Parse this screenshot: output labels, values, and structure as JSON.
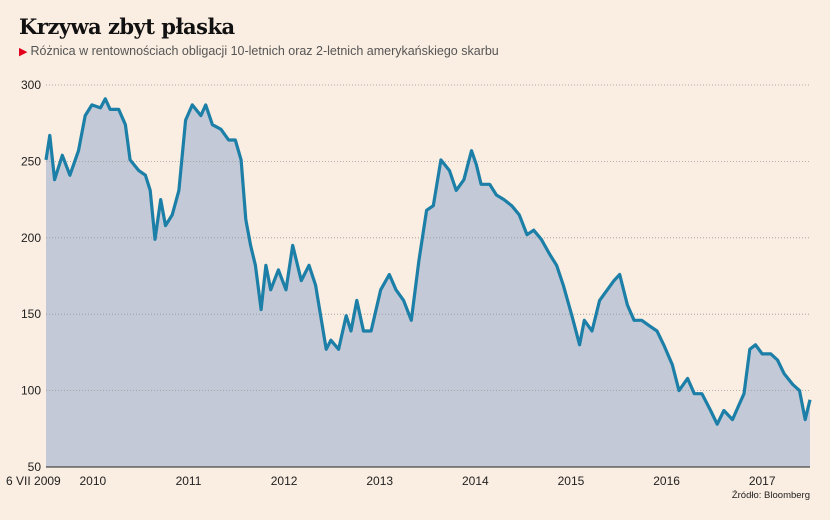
{
  "title": "Krzywa zbyt płaska",
  "subtitle": "Różnica w rentownościach obligacji 10-letnich oraz 2-letnich amerykańskiego skarbu",
  "source": "Źródło: Bloomberg",
  "colors": {
    "background": "#faede1",
    "fill": "#c3c9d6",
    "line": "#1c7fa7",
    "accent": "#e2001a"
  },
  "chart_data": {
    "type": "area",
    "title": "Krzywa zbyt płaska",
    "xlabel": "",
    "ylabel": "",
    "ylim": [
      50,
      300
    ],
    "xlim": [
      2009.51,
      2017.5
    ],
    "yticks": [
      50,
      100,
      150,
      200,
      250,
      300
    ],
    "xticks": [
      {
        "value": 2009.51,
        "label": "6 VII 2009"
      },
      {
        "value": 2010,
        "label": "2010"
      },
      {
        "value": 2011,
        "label": "2011"
      },
      {
        "value": 2012,
        "label": "2012"
      },
      {
        "value": 2013,
        "label": "2013"
      },
      {
        "value": 2014,
        "label": "2014"
      },
      {
        "value": 2015,
        "label": "2015"
      },
      {
        "value": 2016,
        "label": "2016"
      },
      {
        "value": 2017,
        "label": "2017"
      }
    ],
    "grid": true,
    "x": [
      2009.51,
      2009.55,
      2009.6,
      2009.68,
      2009.76,
      2009.85,
      2009.92,
      2009.99,
      2010.08,
      2010.13,
      2010.18,
      2010.27,
      2010.34,
      2010.39,
      2010.48,
      2010.55,
      2010.6,
      2010.65,
      2010.71,
      2010.76,
      2010.83,
      2010.9,
      2010.97,
      2011.04,
      2011.13,
      2011.18,
      2011.25,
      2011.34,
      2011.42,
      2011.49,
      2011.55,
      2011.6,
      2011.65,
      2011.7,
      2011.76,
      2011.81,
      2011.86,
      2011.94,
      2012.02,
      2012.09,
      2012.18,
      2012.26,
      2012.33,
      2012.39,
      2012.44,
      2012.49,
      2012.57,
      2012.65,
      2012.7,
      2012.76,
      2012.83,
      2012.91,
      2013.01,
      2013.1,
      2013.17,
      2013.25,
      2013.33,
      2013.41,
      2013.49,
      2013.56,
      2013.64,
      2013.73,
      2013.8,
      2013.88,
      2013.96,
      2014.01,
      2014.06,
      2014.15,
      2014.22,
      2014.3,
      2014.38,
      2014.46,
      2014.54,
      2014.61,
      2014.69,
      2014.78,
      2014.85,
      2014.92,
      2015.01,
      2015.09,
      2015.14,
      2015.22,
      2015.3,
      2015.38,
      2015.45,
      2015.51,
      2015.59,
      2015.66,
      2015.74,
      2015.83,
      2015.9,
      2015.97,
      2016.06,
      2016.13,
      2016.22,
      2016.29,
      2016.37,
      2016.46,
      2016.53,
      2016.6,
      2016.69,
      2016.76,
      2016.81,
      2016.87,
      2016.93,
      2017.0,
      2017.09,
      2017.16,
      2017.23,
      2017.32,
      2017.39,
      2017.45,
      2017.5
    ],
    "values": [
      251,
      267,
      238,
      254,
      241,
      257,
      280,
      287,
      285,
      291,
      284,
      284,
      274,
      251,
      244,
      241,
      231,
      199,
      225,
      208,
      215,
      231,
      277,
      287,
      280,
      287,
      274,
      271,
      264,
      264,
      251,
      212,
      195,
      182,
      153,
      182,
      166,
      179,
      166,
      195,
      172,
      182,
      169,
      146,
      127,
      133,
      127,
      149,
      139,
      159,
      139,
      139,
      166,
      176,
      166,
      159,
      146,
      185,
      218,
      221,
      251,
      244,
      231,
      238,
      257,
      248,
      235,
      235,
      228,
      225,
      221,
      215,
      202,
      205,
      199,
      189,
      182,
      169,
      149,
      130,
      146,
      139,
      159,
      166,
      172,
      176,
      156,
      146,
      146,
      142,
      139,
      130,
      117,
      100,
      108,
      98,
      98,
      87,
      78,
      87,
      81,
      91,
      98,
      127,
      130,
      124,
      124,
      120,
      111,
      104,
      100,
      81,
      94
    ]
  }
}
